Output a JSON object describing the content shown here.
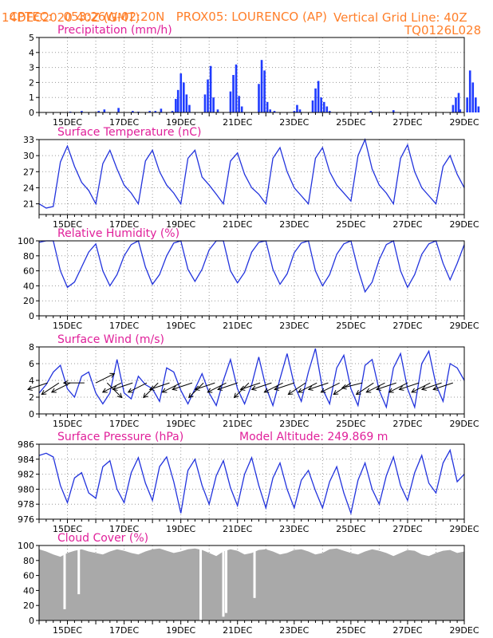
{
  "header": {
    "source": "CPTEC:",
    "coords": "053:26W-02:20N",
    "station": "PROX05: LOURENCO (AP)",
    "init_time": "14DEC2020 40Z (GMT)",
    "grid_note": "Vertical Grid Line: 40Z",
    "model_code": "TQ0126L028"
  },
  "colors": {
    "header": "#ff7f2a",
    "title": "#e0209a",
    "line": "#2233dd",
    "bar": "#1f3bff",
    "cloud": "#a9a9a9"
  },
  "x_axis": {
    "start": "14DEC2020 12Z",
    "end": "29DEC2020 00Z",
    "tick_labels": [
      "15DEC",
      "17DEC",
      "19DEC",
      "21DEC",
      "23DEC",
      "25DEC",
      "27DEC",
      "29DEC"
    ],
    "tick_days": [
      1,
      3,
      5,
      7,
      9,
      11,
      13,
      15
    ]
  },
  "chart_data": [
    {
      "type": "bar",
      "title": "Precipitation (mm/h)",
      "ylim": [
        0,
        5
      ],
      "yticks": [
        "0",
        "1",
        "2",
        "3",
        "4",
        "5"
      ],
      "x_days": [
        1.1,
        1.5,
        2.1,
        2.3,
        2.8,
        3.3,
        3.5,
        3.9,
        4.1,
        4.3,
        4.7,
        4.82,
        4.9,
        5.0,
        5.1,
        5.2,
        5.3,
        5.85,
        5.95,
        6.05,
        6.15,
        6.3,
        6.75,
        6.85,
        6.95,
        7.05,
        7.15,
        7.75,
        7.85,
        7.95,
        8.05,
        8.15,
        8.3,
        9.0,
        9.1,
        9.2,
        9.65,
        9.75,
        9.85,
        9.95,
        10.05,
        10.15,
        10.25,
        11.7,
        12.5,
        14.6,
        14.7,
        14.8,
        14.85,
        15.1,
        15.2,
        15.3,
        15.4,
        15.5
      ],
      "values": [
        0.05,
        0.1,
        0.1,
        0.2,
        0.3,
        0.1,
        0.05,
        0.1,
        0.1,
        0.25,
        0.1,
        0.9,
        1.5,
        2.6,
        2.0,
        1.2,
        0.5,
        1.2,
        2.2,
        3.1,
        1.0,
        0.2,
        1.4,
        2.5,
        3.2,
        1.1,
        0.4,
        1.9,
        3.5,
        2.8,
        0.7,
        0.2,
        0.1,
        0.1,
        0.5,
        0.2,
        0.8,
        1.6,
        2.1,
        1.0,
        0.7,
        0.4,
        0.1,
        0.1,
        0.15,
        0.5,
        1.0,
        1.3,
        0.2,
        1.0,
        2.8,
        2.0,
        1.0,
        0.4
      ]
    },
    {
      "type": "line",
      "title": "Surface Temperature (nC)",
      "ylim": [
        19,
        33
      ],
      "yticks": [
        "21",
        "24",
        "27",
        "30",
        "33"
      ],
      "x_days": [
        0.0,
        0.25,
        0.5,
        0.75,
        1.0,
        1.25,
        1.5,
        1.75,
        2.0,
        2.25,
        2.5,
        2.75,
        3.0,
        3.25,
        3.5,
        3.75,
        4.0,
        4.25,
        4.5,
        4.75,
        5.0,
        5.25,
        5.5,
        5.75,
        6.0,
        6.25,
        6.5,
        6.75,
        7.0,
        7.25,
        7.5,
        7.75,
        8.0,
        8.25,
        8.5,
        8.75,
        9.0,
        9.25,
        9.5,
        9.75,
        10.0,
        10.25,
        10.5,
        10.75,
        11.0,
        11.25,
        11.5,
        11.75,
        12.0,
        12.25,
        12.5,
        12.75,
        13.0,
        13.25,
        13.5,
        13.75,
        14.0,
        14.25,
        14.5,
        14.75,
        15.0
      ],
      "values": [
        21.0,
        20.2,
        20.5,
        28.8,
        31.8,
        28.0,
        25.0,
        23.5,
        21.0,
        28.5,
        31.0,
        27.5,
        24.5,
        23.0,
        21.0,
        29.0,
        31.0,
        27.0,
        24.5,
        23.0,
        21.0,
        29.5,
        31.0,
        26.0,
        24.5,
        22.8,
        21.0,
        29.0,
        30.5,
        26.5,
        24.0,
        22.8,
        21.0,
        29.5,
        31.5,
        27.0,
        24.0,
        22.5,
        21.0,
        29.5,
        31.5,
        27.0,
        24.5,
        23.0,
        21.5,
        30.0,
        33.0,
        27.5,
        24.5,
        23.0,
        21.0,
        29.5,
        32.0,
        27.0,
        24.0,
        22.5,
        21.0,
        28.0,
        30.0,
        26.5,
        24.0
      ]
    },
    {
      "type": "line",
      "title": "Relative Humidity (%)",
      "ylim": [
        0,
        100
      ],
      "yticks": [
        "0",
        "20",
        "40",
        "60",
        "80",
        "100"
      ],
      "x_days": [
        0.0,
        0.25,
        0.5,
        0.75,
        1.0,
        1.25,
        1.5,
        1.75,
        2.0,
        2.25,
        2.5,
        2.75,
        3.0,
        3.25,
        3.5,
        3.75,
        4.0,
        4.25,
        4.5,
        4.75,
        5.0,
        5.25,
        5.5,
        5.75,
        6.0,
        6.25,
        6.5,
        6.75,
        7.0,
        7.25,
        7.5,
        7.75,
        8.0,
        8.25,
        8.5,
        8.75,
        9.0,
        9.25,
        9.5,
        9.75,
        10.0,
        10.25,
        10.5,
        10.75,
        11.0,
        11.25,
        11.5,
        11.75,
        12.0,
        12.25,
        12.5,
        12.75,
        13.0,
        13.25,
        13.5,
        13.75,
        14.0,
        14.25,
        14.5,
        14.75,
        15.0
      ],
      "values": [
        98,
        100,
        100,
        60,
        38,
        45,
        65,
        85,
        96,
        60,
        40,
        55,
        80,
        95,
        100,
        65,
        42,
        55,
        80,
        97,
        100,
        62,
        46,
        62,
        88,
        100,
        100,
        60,
        44,
        58,
        85,
        98,
        100,
        62,
        42,
        56,
        84,
        97,
        100,
        60,
        40,
        55,
        82,
        96,
        100,
        62,
        32,
        45,
        75,
        95,
        100,
        60,
        38,
        55,
        82,
        96,
        100,
        70,
        48,
        70,
        95
      ]
    },
    {
      "type": "line",
      "title": "Surface Wind (m/s)",
      "ylim": [
        0,
        8
      ],
      "yticks": [
        "0",
        "2",
        "4",
        "6",
        "8"
      ],
      "x_days": [
        0.0,
        0.25,
        0.5,
        0.75,
        1.0,
        1.25,
        1.5,
        1.75,
        2.0,
        2.25,
        2.5,
        2.75,
        3.0,
        3.25,
        3.5,
        3.75,
        4.0,
        4.25,
        4.5,
        4.75,
        5.0,
        5.25,
        5.5,
        5.75,
        6.0,
        6.25,
        6.5,
        6.75,
        7.0,
        7.25,
        7.5,
        7.75,
        8.0,
        8.25,
        8.5,
        8.75,
        9.0,
        9.25,
        9.5,
        9.75,
        10.0,
        10.25,
        10.5,
        10.75,
        11.0,
        11.25,
        11.5,
        11.75,
        12.0,
        12.25,
        12.5,
        12.75,
        13.0,
        13.25,
        13.5,
        13.75,
        14.0,
        14.25,
        14.5,
        14.75,
        15.0
      ],
      "values": [
        2.5,
        3.5,
        5.0,
        5.8,
        3.0,
        2.0,
        4.5,
        5.0,
        2.5,
        1.2,
        2.5,
        6.5,
        2.5,
        1.8,
        4.5,
        3.5,
        3.0,
        1.5,
        5.5,
        5.0,
        2.8,
        1.2,
        3.0,
        4.8,
        2.5,
        1.0,
        4.0,
        6.5,
        3.0,
        1.2,
        3.5,
        6.8,
        3.2,
        1.0,
        4.2,
        7.2,
        3.5,
        1.5,
        5.0,
        7.8,
        3.0,
        1.2,
        5.5,
        7.0,
        3.0,
        1.0,
        5.8,
        6.5,
        2.8,
        0.8,
        5.5,
        7.2,
        3.0,
        0.8,
        6.0,
        7.5,
        3.5,
        1.5,
        6.0,
        5.5,
        4.0
      ],
      "arrow_days": [
        0.3,
        0.7,
        1.1,
        1.6,
        2.0,
        2.4,
        2.9,
        3.3,
        3.8,
        4.2,
        4.6,
        5.0,
        5.4,
        5.8,
        6.2,
        6.6,
        7.0,
        7.4,
        7.8,
        8.2,
        8.6,
        9.0,
        9.4,
        9.8,
        10.2,
        10.6,
        11.0,
        11.4,
        11.8,
        12.2,
        12.6,
        13.0,
        13.4,
        13.8,
        14.2,
        14.6
      ],
      "arrow_u": [
        -3,
        -3,
        -2,
        -2,
        2,
        1,
        -2,
        -3,
        -2,
        -2,
        -3,
        -2,
        -3,
        -2,
        -3,
        -2,
        -3,
        -2,
        -3,
        -3,
        -4,
        -3,
        -3,
        -4,
        -3,
        -4,
        -3,
        -4,
        -3,
        -4,
        -3,
        -4,
        -3,
        -4,
        -3,
        -3
      ],
      "arrow_v": [
        -1,
        -2,
        -1,
        0,
        1,
        -1,
        -1,
        -1,
        -1,
        -2,
        -1,
        -1,
        -1,
        -2,
        -1,
        -1,
        -1,
        -2,
        -1,
        -1,
        -2,
        -1,
        -2,
        -2,
        -1,
        -2,
        -2,
        -1,
        -2,
        -2,
        -1,
        -2,
        -1,
        -2,
        -1,
        -1
      ]
    },
    {
      "type": "line",
      "title": "Surface Pressure (hPa)",
      "annotation": "Model Altitude: 249.869  m",
      "ylim": [
        976,
        986
      ],
      "yticks": [
        "976",
        "978",
        "980",
        "982",
        "984",
        "986"
      ],
      "x_days": [
        0.0,
        0.25,
        0.5,
        0.75,
        1.0,
        1.25,
        1.5,
        1.75,
        2.0,
        2.25,
        2.5,
        2.75,
        3.0,
        3.25,
        3.5,
        3.75,
        4.0,
        4.25,
        4.5,
        4.75,
        5.0,
        5.25,
        5.5,
        5.75,
        6.0,
        6.25,
        6.5,
        6.75,
        7.0,
        7.25,
        7.5,
        7.75,
        8.0,
        8.25,
        8.5,
        8.75,
        9.0,
        9.25,
        9.5,
        9.75,
        10.0,
        10.25,
        10.5,
        10.75,
        11.0,
        11.25,
        11.5,
        11.75,
        12.0,
        12.25,
        12.5,
        12.75,
        13.0,
        13.25,
        13.5,
        13.75,
        14.0,
        14.25,
        14.5,
        14.75,
        15.0
      ],
      "values": [
        984.5,
        984.8,
        984.3,
        980.5,
        978.2,
        981.5,
        982.2,
        979.5,
        978.8,
        983.0,
        983.8,
        980.0,
        978.2,
        982.2,
        984.2,
        980.8,
        978.5,
        983.0,
        984.3,
        981.0,
        976.8,
        982.5,
        984.0,
        980.5,
        978.0,
        981.8,
        983.8,
        980.2,
        977.8,
        982.0,
        984.2,
        980.5,
        977.5,
        981.5,
        983.5,
        980.0,
        977.5,
        981.2,
        982.5,
        979.8,
        977.5,
        981.0,
        983.0,
        979.5,
        976.8,
        981.2,
        983.5,
        980.0,
        978.0,
        981.8,
        984.3,
        980.5,
        978.5,
        982.2,
        984.5,
        980.8,
        979.5,
        983.5,
        985.2,
        981.0,
        982.0
      ]
    },
    {
      "type": "area",
      "title": "Cloud Cover (%)",
      "ylim": [
        0,
        100
      ],
      "yticks": [
        "0",
        "20",
        "40",
        "60",
        "80",
        "100"
      ],
      "x_days": [
        0.0,
        0.25,
        0.5,
        0.75,
        1.0,
        1.25,
        1.5,
        1.75,
        2.0,
        2.25,
        2.5,
        2.75,
        3.0,
        3.25,
        3.5,
        3.75,
        4.0,
        4.25,
        4.5,
        4.75,
        5.0,
        5.25,
        5.5,
        5.75,
        6.0,
        6.25,
        6.5,
        6.75,
        7.0,
        7.25,
        7.5,
        7.75,
        8.0,
        8.25,
        8.5,
        8.75,
        9.0,
        9.25,
        9.5,
        9.75,
        10.0,
        10.25,
        10.5,
        10.75,
        11.0,
        11.25,
        11.5,
        11.75,
        12.0,
        12.25,
        12.5,
        12.75,
        13.0,
        13.25,
        13.5,
        13.75,
        14.0,
        14.25,
        14.5,
        14.75,
        15.0
      ],
      "values": [
        95,
        92,
        88,
        85,
        90,
        93,
        95,
        92,
        90,
        88,
        92,
        95,
        93,
        90,
        88,
        92,
        95,
        96,
        93,
        90,
        92,
        95,
        96,
        94,
        90,
        86,
        92,
        95,
        93,
        88,
        90,
        94,
        95,
        92,
        88,
        90,
        94,
        95,
        92,
        88,
        90,
        95,
        96,
        93,
        90,
        88,
        92,
        95,
        93,
        90,
        86,
        90,
        94,
        93,
        88,
        86,
        90,
        93,
        94,
        90,
        92
      ],
      "dips_days": [
        0.9,
        1.4,
        5.7,
        6.5,
        6.6,
        7.6
      ],
      "dips_values": [
        15,
        35,
        0,
        5,
        10,
        30
      ]
    }
  ]
}
